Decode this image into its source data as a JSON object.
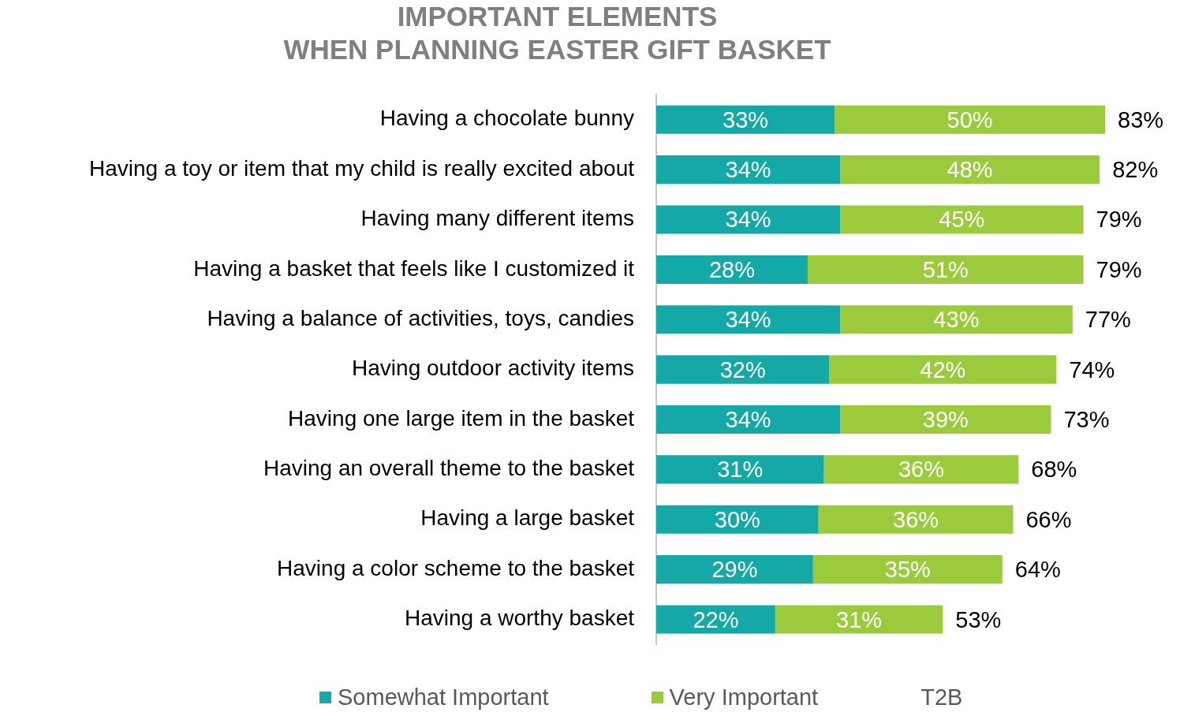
{
  "chart_data": {
    "type": "bar",
    "orientation": "horizontal",
    "stacked": true,
    "title": "IMPORTANT ELEMENTS\nWHEN PLANNING EASTER GIFT BASKET",
    "categories": [
      "Having a chocolate bunny",
      "Having a toy or item that my child is really excited about",
      "Having many different items",
      "Having a basket that feels like I customized it",
      "Having a balance of activities, toys, candies",
      "Having outdoor activity items",
      "Having one large item in the basket",
      "Having an overall theme to the basket",
      "Having a large basket",
      "Having a color scheme to the basket",
      "Having a worthy basket"
    ],
    "series": [
      {
        "name": "Somewhat Important",
        "color": "#14a9a6",
        "values": [
          33,
          34,
          34,
          28,
          34,
          32,
          34,
          31,
          30,
          29,
          22
        ],
        "value_labels": [
          "33%",
          "34%",
          "34%",
          "28%",
          "34%",
          "32%",
          "34%",
          "31%",
          "30%",
          "29%",
          "22%"
        ]
      },
      {
        "name": "Very Important",
        "color": "#9bcb3c",
        "values": [
          50,
          48,
          45,
          51,
          43,
          42,
          39,
          36,
          36,
          35,
          31
        ],
        "value_labels": [
          "50%",
          "48%",
          "45%",
          "51%",
          "43%",
          "42%",
          "39%",
          "36%",
          "36%",
          "35%",
          "31%"
        ]
      }
    ],
    "totals": [
      "83%",
      "82%",
      "79%",
      "79%",
      "77%",
      "74%",
      "73%",
      "68%",
      "66%",
      "64%",
      "53%"
    ],
    "annotations": [
      "T2B"
    ],
    "legend": "bottom"
  }
}
